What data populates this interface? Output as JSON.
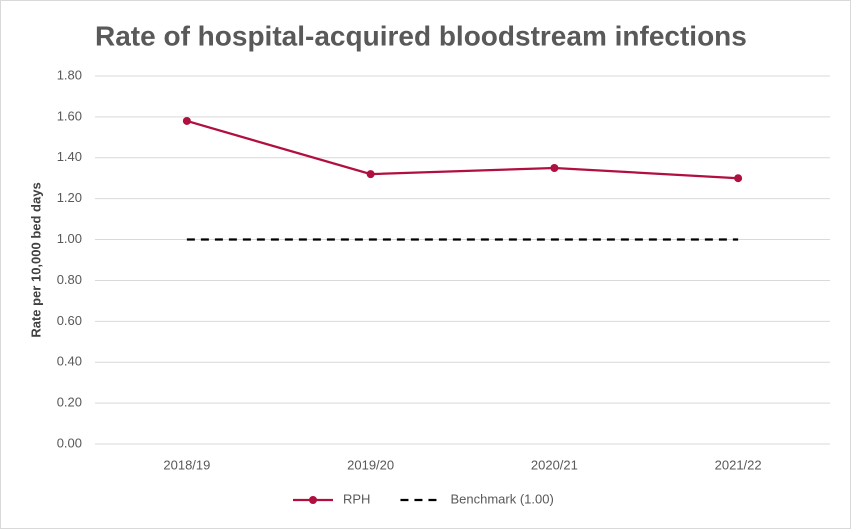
{
  "chart_data": {
    "type": "line",
    "title": "Rate of hospital-acquired bloodstream infections",
    "y_label": "Rate per 10,000 bed days",
    "categories": [
      "2018/19",
      "2019/20",
      "2020/21",
      "2021/22"
    ],
    "series": [
      {
        "name": "RPH",
        "color": "#b0103f",
        "values": [
          1.58,
          1.32,
          1.35,
          1.3
        ],
        "marker": true,
        "dashed": false
      },
      {
        "name": "Benchmark (1.00)",
        "color": "#000000",
        "values": [
          1.0,
          1.0,
          1.0,
          1.0
        ],
        "marker": false,
        "dashed": true
      }
    ],
    "ylim": [
      0,
      1.8
    ],
    "yticks": [
      {
        "value": 0,
        "label": "0.00"
      },
      {
        "value": 0.2,
        "label": "0.20"
      },
      {
        "value": 0.4,
        "label": "0.40"
      },
      {
        "value": 0.6,
        "label": "0.60"
      },
      {
        "value": 0.8,
        "label": "0.80"
      },
      {
        "value": 1,
        "label": "1.00"
      },
      {
        "value": 1.2,
        "label": "1.20"
      },
      {
        "value": 1.4,
        "label": "1.40"
      },
      {
        "value": 1.6,
        "label": "1.60"
      },
      {
        "value": 1.8,
        "label": "1.80"
      }
    ],
    "grid": true,
    "legend": "bottom"
  }
}
